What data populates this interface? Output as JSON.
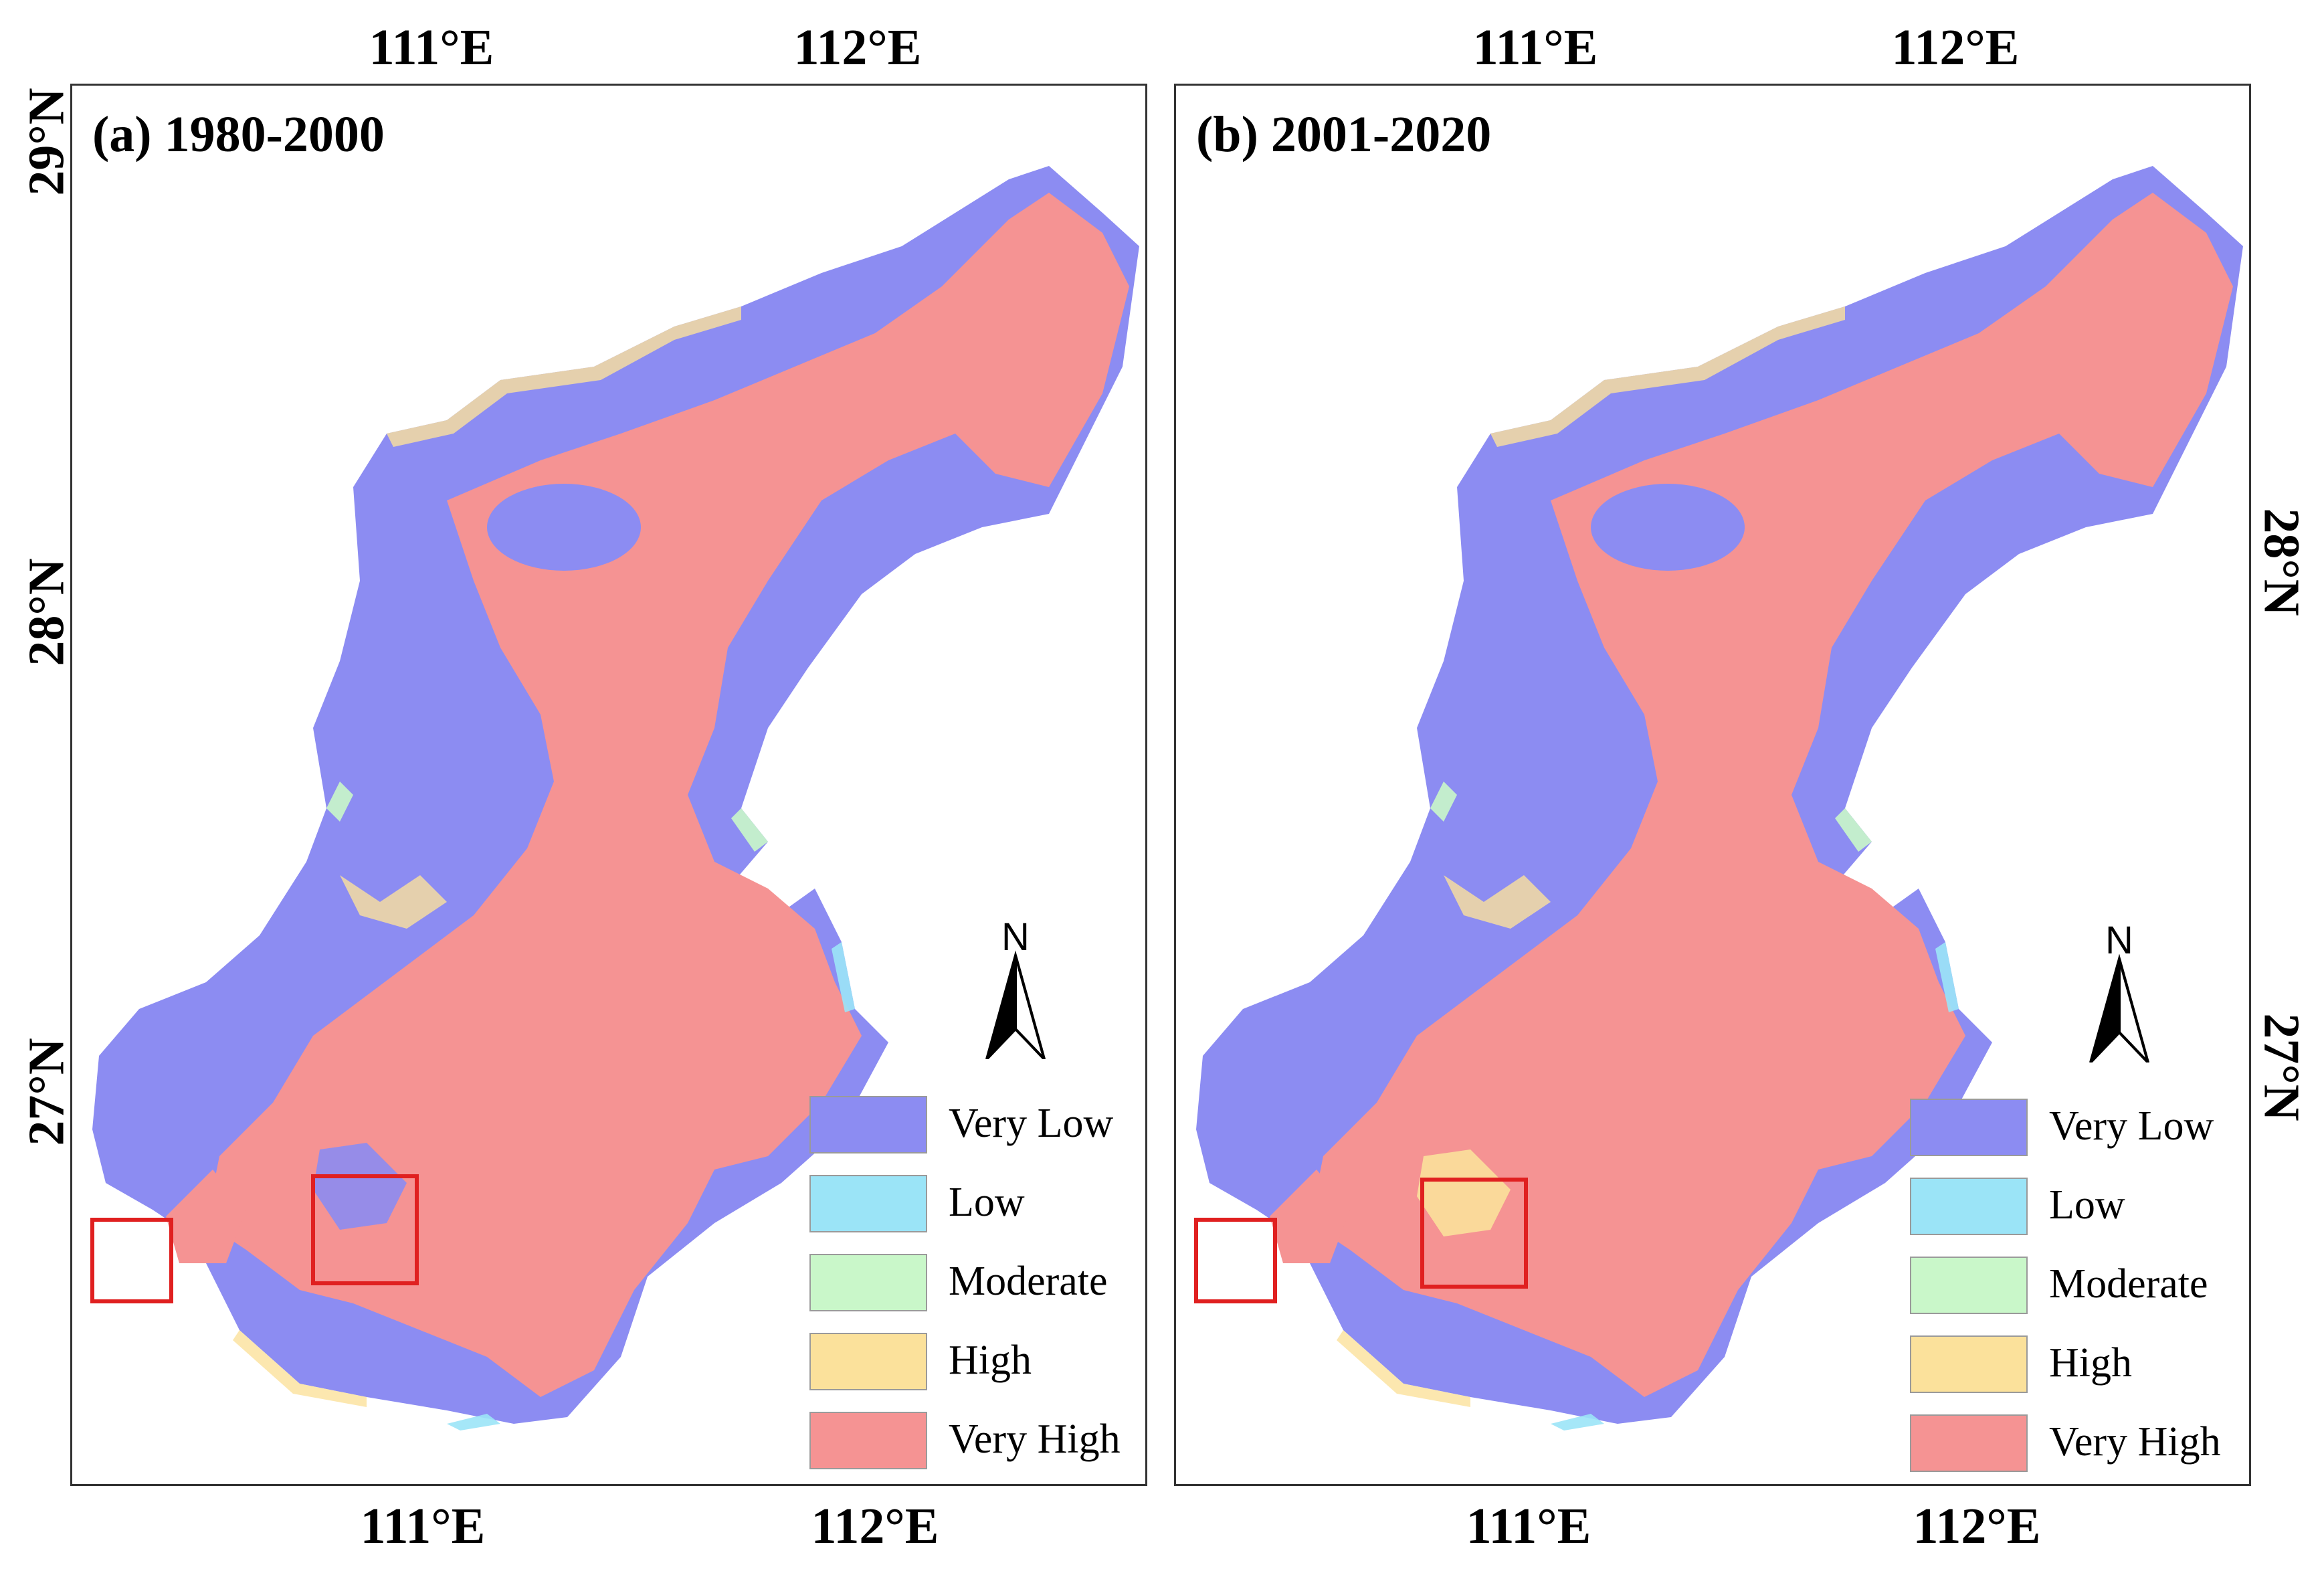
{
  "figure": {
    "panels": [
      {
        "title": "(a) 1980-2000"
      },
      {
        "title": "(b) 2001-2020"
      }
    ],
    "lon_labels": [
      "111°E",
      "112°E"
    ],
    "lat_labels": [
      "29°N",
      "28°N",
      "27°N"
    ],
    "north_arrow": {
      "label": "N",
      "icon": "north-arrow-icon"
    },
    "legend": [
      {
        "label": "Very Low",
        "color": "#8c8cf2"
      },
      {
        "label": "Low",
        "color": "#9be4f7"
      },
      {
        "label": "Moderate",
        "color": "#c9f7c9"
      },
      {
        "label": "High",
        "color": "#fbe19b"
      },
      {
        "label": "Very High",
        "color": "#f59393"
      }
    ],
    "highlight_color": "#e02020"
  }
}
